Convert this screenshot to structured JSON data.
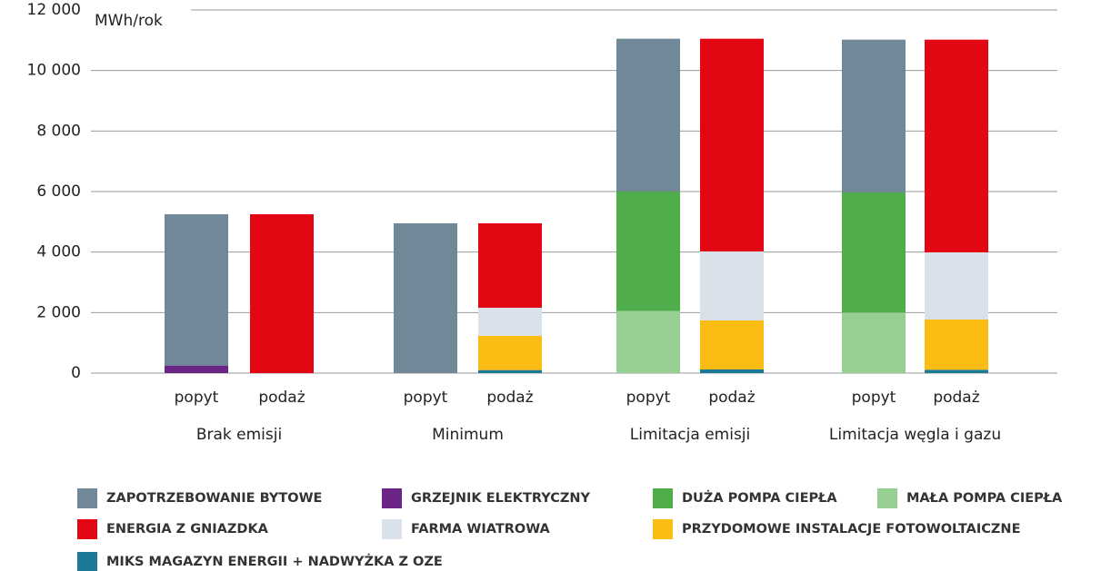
{
  "chart_data": {
    "type": "stacked_bar",
    "y_unit": "MWh/rok",
    "categories": [
      "popyt",
      "podaż",
      "popyt",
      "podaż",
      "popyt",
      "podaż",
      "popyt",
      "podaż"
    ],
    "groups": [
      "Brak emisji",
      "Minimum",
      "Limitacja emisji",
      "Limitacja węgla i gazu"
    ],
    "series": [
      {
        "name": "ZAPOTRZEBOWANIE BYTOWE",
        "color": "#718899",
        "values": [
          5000,
          0,
          4950,
          0,
          5050,
          0,
          5050,
          0
        ]
      },
      {
        "name": "GRZEJNIK ELEKTRYCZNY",
        "color": "#6a2585",
        "values": [
          250,
          0,
          0,
          0,
          0,
          0,
          0,
          0
        ]
      },
      {
        "name": "DUŻA POMPA CIEPŁA",
        "color": "#4fae4b",
        "values": [
          0,
          0,
          0,
          0,
          3950,
          0,
          3970,
          0
        ]
      },
      {
        "name": "MAŁA POMPA CIEPŁA",
        "color": "#97cf92",
        "values": [
          0,
          0,
          0,
          0,
          2050,
          0,
          2000,
          0
        ]
      },
      {
        "name": "ENERGIA Z GNIAZDKA",
        "color": "#e30613",
        "values": [
          0,
          5250,
          0,
          2790,
          0,
          7030,
          0,
          7030
        ]
      },
      {
        "name": "FARMA WIATROWA",
        "color": "#d9e1ea",
        "values": [
          0,
          0,
          0,
          930,
          0,
          2280,
          0,
          2220
        ]
      },
      {
        "name": "PRZYDOMOWE INSTALACJE FOTOWOLTAICZNE",
        "color": "#fbbd13",
        "values": [
          0,
          0,
          0,
          1130,
          0,
          1620,
          0,
          1660
        ]
      },
      {
        "name": "MIKS MAGAZYN ENERGII + NADWYŻKA Z OZE",
        "color": "#1a7a95",
        "values": [
          0,
          0,
          0,
          100,
          0,
          120,
          0,
          110
        ]
      }
    ],
    "ylim": [
      0,
      12000
    ],
    "yticks": [
      0,
      {
        "value": 2000,
        "label": "2 000"
      },
      {
        "value": 4000,
        "label": "4 000"
      },
      {
        "value": 6000,
        "label": "6 000"
      },
      {
        "value": 8000,
        "label": "8 000"
      },
      {
        "value": 10000,
        "label": "10 000"
      },
      {
        "value": 12000,
        "label": "12 000"
      }
    ],
    "grid": true
  }
}
